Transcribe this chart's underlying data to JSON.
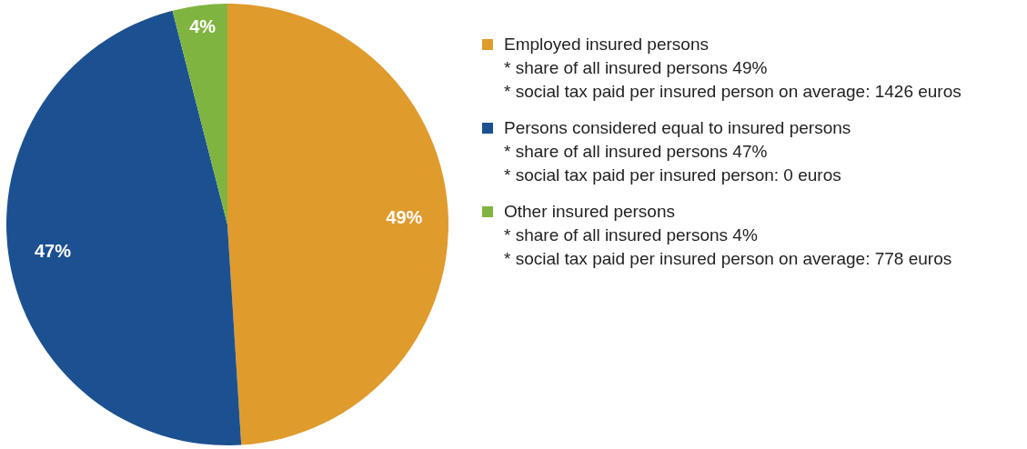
{
  "chart_data": {
    "type": "pie",
    "categories": [
      "Employed insured persons",
      "Persons considered equal to insured persons",
      "Other insured persons"
    ],
    "values": [
      49,
      47,
      4
    ],
    "colors": [
      "#e09b2d",
      "#1c5191",
      "#80b440"
    ],
    "value_labels": [
      "49%",
      "47%",
      "4%"
    ],
    "legend": "right",
    "annotations": [
      "* share of all insured persons 49%",
      "* social tax paid per insured person on average: 1426 euros",
      "* share of all insured persons 47%",
      "* social tax paid per insured person: 0 euros",
      "* share of all insured persons 4%",
      "* social tax paid per insured person on average: 778 euros"
    ]
  }
}
